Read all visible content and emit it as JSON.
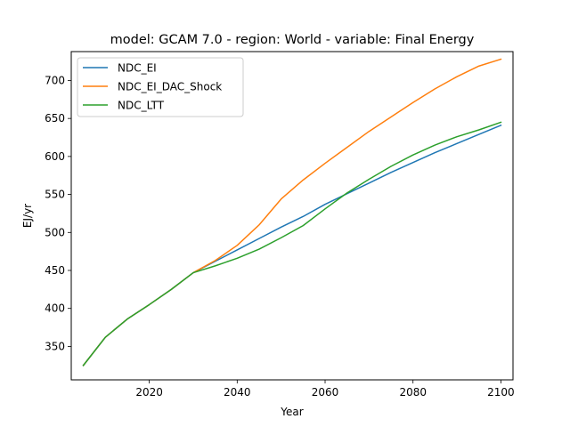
{
  "chart_data": {
    "type": "line",
    "title": "model: GCAM 7.0 - region: World - variable: Final Energy",
    "xlabel": "Year",
    "ylabel": "EJ/yr",
    "xlim": [
      2002.25,
      2102.75
    ],
    "ylim": [
      306,
      738
    ],
    "xticks": [
      2020,
      2040,
      2060,
      2080,
      2100
    ],
    "yticks": [
      350,
      400,
      450,
      500,
      550,
      600,
      650,
      700
    ],
    "grid": false,
    "legend_position": "top-left",
    "x": [
      2005,
      2010,
      2015,
      2020,
      2025,
      2030,
      2035,
      2040,
      2045,
      2050,
      2055,
      2060,
      2065,
      2070,
      2075,
      2080,
      2085,
      2090,
      2095,
      2100
    ],
    "series": [
      {
        "name": "NDC_EI",
        "color": "#1f77b4",
        "values": [
          325,
          362,
          386,
          405,
          425,
          447,
          462,
          477,
          492,
          507,
          521,
          537,
          551,
          565,
          579,
          592,
          605,
          617,
          629,
          641
        ]
      },
      {
        "name": "NDC_EI_DAC_Shock",
        "color": "#ff7f0e",
        "values": [
          325,
          362,
          386,
          405,
          425,
          447,
          463,
          483,
          510,
          544,
          569,
          591,
          612,
          633,
          652,
          671,
          689,
          705,
          719,
          728
        ]
      },
      {
        "name": "NDC_LTT",
        "color": "#2ca02c",
        "values": [
          325,
          362,
          386,
          405,
          425,
          447,
          456,
          466,
          478,
          493,
          509,
          531,
          552,
          570,
          587,
          602,
          615,
          626,
          635,
          645
        ]
      }
    ]
  }
}
